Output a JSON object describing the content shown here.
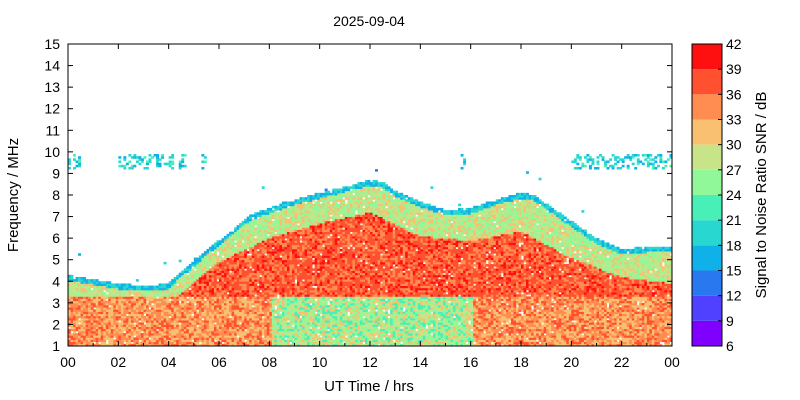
{
  "chart_data": {
    "type": "heatmap",
    "title": "2025-09-04",
    "xlabel": "UT Time / hrs",
    "ylabel": "Frequency / MHz",
    "colorbar_label": "Signal to Noise Ratio SNR / dB",
    "xlim": [
      0,
      24
    ],
    "ylim": [
      1,
      15
    ],
    "x_ticks": [
      "00",
      "02",
      "04",
      "06",
      "08",
      "10",
      "12",
      "14",
      "16",
      "18",
      "20",
      "22",
      "00"
    ],
    "y_ticks": [
      "1",
      "2",
      "3",
      "4",
      "5",
      "6",
      "7",
      "8",
      "9",
      "10",
      "11",
      "12",
      "13",
      "14",
      "15"
    ],
    "colorbar": {
      "range": [
        6,
        42
      ],
      "ticks": [
        "6",
        "9",
        "12",
        "15",
        "18",
        "21",
        "24",
        "27",
        "30",
        "33",
        "36",
        "39",
        "42"
      ],
      "colors": [
        "#8000ff",
        "#5040ff",
        "#2a78f0",
        "#10b0e8",
        "#28d8d0",
        "#48f0b8",
        "#90f898",
        "#c8e488",
        "#f8c070",
        "#ff8c50",
        "#ff5030",
        "#ff1010"
      ]
    },
    "envelope": {
      "upper_edge_mhz": [
        [
          0,
          4.3
        ],
        [
          1,
          4.1
        ],
        [
          2,
          3.9
        ],
        [
          3,
          3.8
        ],
        [
          4,
          3.9
        ],
        [
          4.5,
          4.5
        ],
        [
          5,
          4.9
        ],
        [
          5.5,
          5.5
        ],
        [
          6,
          5.9
        ],
        [
          6.5,
          6.4
        ],
        [
          7,
          6.9
        ],
        [
          7.5,
          7.2
        ],
        [
          8,
          7.4
        ],
        [
          8.5,
          7.6
        ],
        [
          9,
          7.8
        ],
        [
          10,
          8.1
        ],
        [
          11,
          8.4
        ],
        [
          12,
          8.7
        ],
        [
          12.5,
          8.6
        ],
        [
          13,
          8.2
        ],
        [
          14,
          7.7
        ],
        [
          15,
          7.3
        ],
        [
          16,
          7.4
        ],
        [
          17,
          7.8
        ],
        [
          18,
          8.1
        ],
        [
          18.5,
          8.0
        ],
        [
          19,
          7.6
        ],
        [
          20,
          6.8
        ],
        [
          21,
          6.0
        ],
        [
          22,
          5.5
        ],
        [
          23,
          5.6
        ],
        [
          24,
          5.6
        ]
      ],
      "core_edge_mhz": [
        [
          0,
          3.6
        ],
        [
          2,
          3.2
        ],
        [
          4,
          3.3
        ],
        [
          5,
          4.3
        ],
        [
          6,
          5.2
        ],
        [
          8,
          6.3
        ],
        [
          10,
          7.0
        ],
        [
          12,
          7.5
        ],
        [
          14,
          6.4
        ],
        [
          16,
          6.2
        ],
        [
          18,
          6.6
        ],
        [
          20,
          5.4
        ],
        [
          22,
          4.5
        ],
        [
          24,
          4.2
        ]
      ],
      "core_snr_db": 40,
      "band_snr_db": 24,
      "edge_snr_db": 16
    },
    "sporadic_layer": {
      "freq_range_mhz": [
        9.2,
        9.9
      ],
      "time_spans_hrs": [
        [
          0,
          0.4
        ],
        [
          2.0,
          4.2
        ],
        [
          4.4,
          4.6
        ],
        [
          5.2,
          5.4
        ],
        [
          15.5,
          15.7
        ],
        [
          20,
          24
        ]
      ],
      "snr_db": 16
    },
    "low_band": {
      "freq_range_mhz": [
        1,
        3.3
      ],
      "snr_db": 38,
      "fade_window_hrs": [
        8,
        16
      ],
      "fade_snr_db": 22
    }
  }
}
